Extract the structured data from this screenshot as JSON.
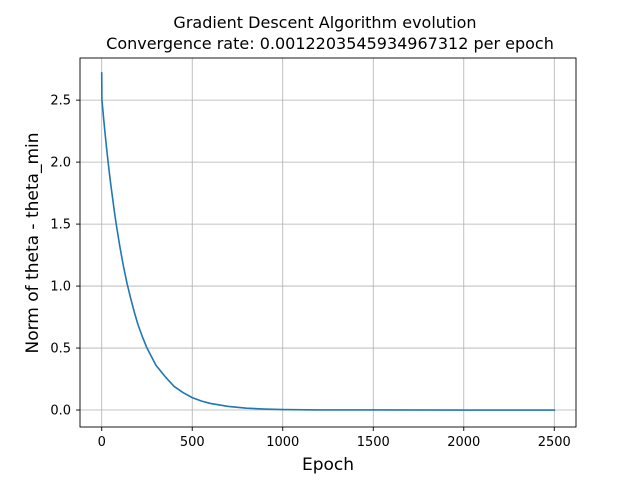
{
  "chart_data": {
    "type": "line",
    "title": "Gradient Descent Algorithm evolution",
    "subtitle": "Convergence rate: 0.0012203545934967312 per epoch",
    "xlabel": "Epoch",
    "ylabel": "Norm of  theta - theta_min",
    "xlim": [
      -120,
      2620
    ],
    "ylim": [
      -0.137,
      2.84
    ],
    "xticks": [
      {
        "value": 0,
        "label": "0"
      },
      {
        "value": 500,
        "label": "500"
      },
      {
        "value": 1000,
        "label": "1000"
      },
      {
        "value": 1500,
        "label": "1500"
      },
      {
        "value": 2000,
        "label": "2000"
      },
      {
        "value": 2500,
        "label": "2500"
      }
    ],
    "yticks": [
      {
        "value": 0.0,
        "label": "0.0"
      },
      {
        "value": 0.5,
        "label": "0.5"
      },
      {
        "value": 1.0,
        "label": "1.0"
      },
      {
        "value": 1.5,
        "label": "1.5"
      },
      {
        "value": 2.0,
        "label": "2.0"
      },
      {
        "value": 2.5,
        "label": "2.5"
      }
    ],
    "grid": true,
    "legend": "none",
    "series": [
      {
        "color": "#1f77b4",
        "x": [
          0,
          1,
          2,
          3,
          5,
          10,
          20,
          30,
          40,
          50,
          60,
          70,
          80,
          90,
          100,
          120,
          140,
          160,
          180,
          200,
          225,
          250,
          275,
          300,
          350,
          400,
          450,
          500,
          550,
          600,
          700,
          800,
          900,
          1000,
          1200,
          1500,
          2000,
          2500
        ],
        "y": [
          2.72,
          2.5,
          2.49,
          2.47,
          2.44,
          2.36,
          2.21,
          2.07,
          1.94,
          1.82,
          1.71,
          1.6,
          1.5,
          1.41,
          1.32,
          1.16,
          1.02,
          0.9,
          0.79,
          0.69,
          0.59,
          0.5,
          0.43,
          0.36,
          0.27,
          0.19,
          0.14,
          0.1,
          0.073,
          0.053,
          0.029,
          0.015,
          0.008,
          0.004,
          0.001,
          0.0003,
          0.0,
          0.0
        ]
      }
    ]
  }
}
